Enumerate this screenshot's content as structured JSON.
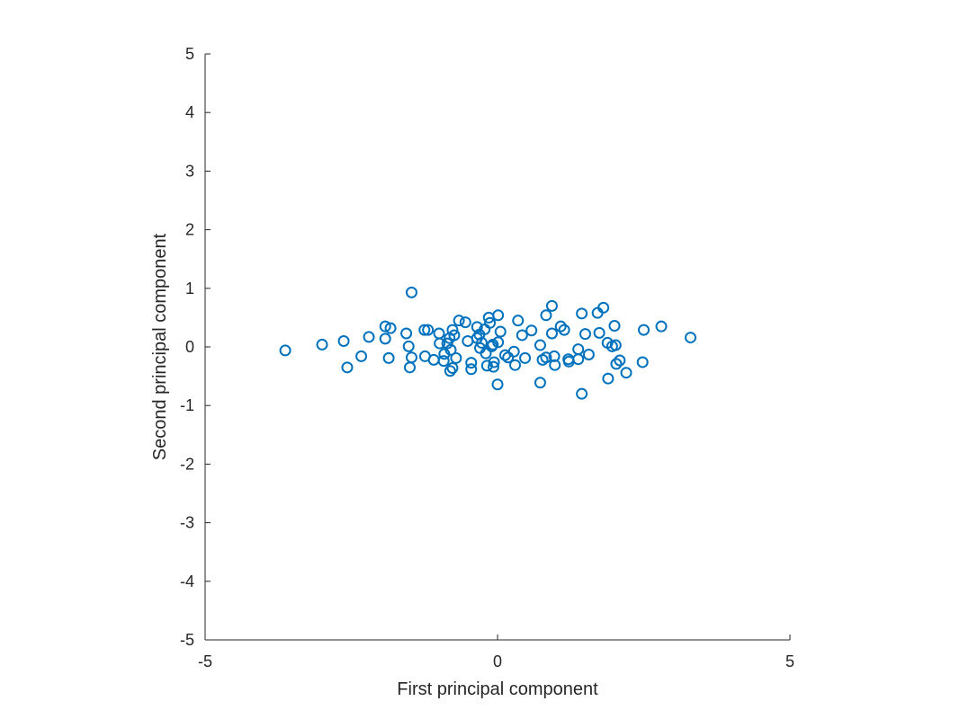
{
  "chart_data": {
    "type": "scatter",
    "title": "",
    "xlabel": "First principal component",
    "ylabel": "Second principal component",
    "xlim": [
      -5,
      5
    ],
    "ylim": [
      -5,
      5
    ],
    "xticks": [
      -5,
      0,
      5
    ],
    "yticks": [
      -5,
      -4,
      -3,
      -2,
      -1,
      0,
      1,
      2,
      3,
      4,
      5
    ],
    "grid": false,
    "marker": "circle-open",
    "color": "#0072BD",
    "series": [
      {
        "points": [
          [
            -3.63,
            -0.06
          ],
          [
            -3.0,
            0.04
          ],
          [
            -2.63,
            0.1
          ],
          [
            -2.57,
            -0.35
          ],
          [
            -2.33,
            -0.16
          ],
          [
            -2.2,
            0.17
          ],
          [
            -1.92,
            0.35
          ],
          [
            -1.92,
            0.14
          ],
          [
            -1.83,
            0.32
          ],
          [
            -1.86,
            -0.19
          ],
          [
            -1.56,
            0.23
          ],
          [
            -1.52,
            0.01
          ],
          [
            -1.5,
            -0.35
          ],
          [
            -1.47,
            -0.18
          ],
          [
            -1.47,
            0.93
          ],
          [
            -1.25,
            0.29
          ],
          [
            -1.19,
            0.29
          ],
          [
            -1.24,
            -0.16
          ],
          [
            -1.09,
            -0.22
          ],
          [
            -1.0,
            0.23
          ],
          [
            -0.99,
            0.06
          ],
          [
            -0.91,
            -0.12
          ],
          [
            -0.92,
            -0.24
          ],
          [
            -0.86,
            0.06
          ],
          [
            -0.82,
            0.15
          ],
          [
            -0.8,
            -0.05
          ],
          [
            -0.77,
            0.29
          ],
          [
            -0.77,
            -0.36
          ],
          [
            -0.81,
            -0.41
          ],
          [
            -0.74,
            0.2
          ],
          [
            -0.71,
            -0.19
          ],
          [
            -0.66,
            0.45
          ],
          [
            -0.55,
            0.42
          ],
          [
            -0.51,
            0.1
          ],
          [
            -0.45,
            -0.27
          ],
          [
            -0.45,
            -0.38
          ],
          [
            -0.35,
            0.15
          ],
          [
            -0.35,
            0.34
          ],
          [
            -0.31,
            0.21
          ],
          [
            -0.3,
            -0.02
          ],
          [
            -0.27,
            0.07
          ],
          [
            -0.22,
            0.3
          ],
          [
            -0.2,
            -0.11
          ],
          [
            -0.18,
            -0.32
          ],
          [
            -0.15,
            0.5
          ],
          [
            -0.13,
            0.41
          ],
          [
            -0.1,
            0.01
          ],
          [
            -0.08,
            0.04
          ],
          [
            -0.07,
            -0.34
          ],
          [
            -0.06,
            -0.26
          ],
          [
            0.01,
            0.08
          ],
          [
            0.01,
            0.54
          ],
          [
            0.0,
            -0.64
          ],
          [
            0.05,
            0.26
          ],
          [
            0.13,
            -0.14
          ],
          [
            0.18,
            -0.18
          ],
          [
            0.28,
            -0.08
          ],
          [
            0.3,
            -0.31
          ],
          [
            0.35,
            0.45
          ],
          [
            0.42,
            0.2
          ],
          [
            0.47,
            -0.19
          ],
          [
            0.58,
            0.28
          ],
          [
            0.73,
            0.03
          ],
          [
            0.73,
            -0.61
          ],
          [
            0.77,
            -0.22
          ],
          [
            0.83,
            -0.18
          ],
          [
            0.83,
            0.54
          ],
          [
            0.93,
            0.7
          ],
          [
            0.93,
            0.23
          ],
          [
            0.97,
            -0.16
          ],
          [
            0.98,
            -0.31
          ],
          [
            1.08,
            0.35
          ],
          [
            1.14,
            0.29
          ],
          [
            1.21,
            -0.21
          ],
          [
            1.22,
            -0.25
          ],
          [
            1.38,
            -0.04
          ],
          [
            1.38,
            -0.21
          ],
          [
            1.44,
            0.57
          ],
          [
            1.44,
            -0.8
          ],
          [
            1.5,
            0.22
          ],
          [
            1.56,
            -0.13
          ],
          [
            1.71,
            0.58
          ],
          [
            1.74,
            0.24
          ],
          [
            1.81,
            0.67
          ],
          [
            1.88,
            0.07
          ],
          [
            1.89,
            -0.54
          ],
          [
            1.96,
            0.01
          ],
          [
            2.0,
            0.36
          ],
          [
            2.02,
            0.03
          ],
          [
            2.03,
            -0.29
          ],
          [
            2.09,
            -0.23
          ],
          [
            2.2,
            -0.44
          ],
          [
            2.48,
            -0.26
          ],
          [
            2.5,
            0.29
          ],
          [
            2.8,
            0.35
          ],
          [
            3.3,
            0.16
          ]
        ]
      }
    ]
  }
}
